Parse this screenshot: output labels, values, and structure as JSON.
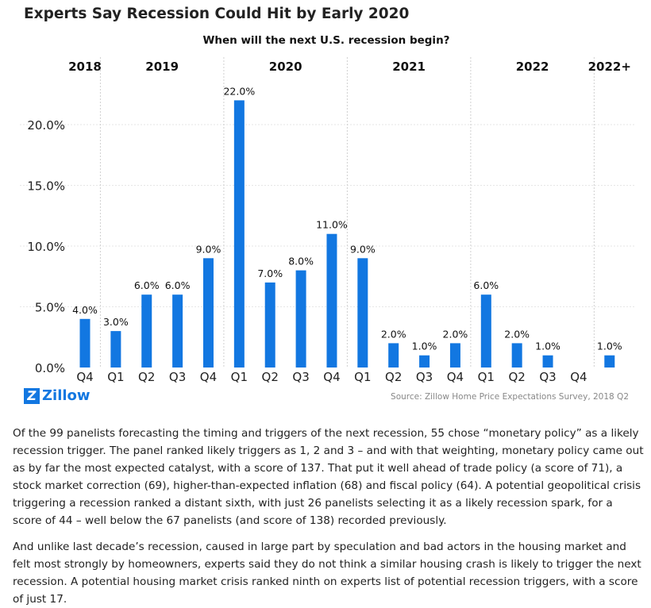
{
  "title": "Experts Say Recession Could Hit by Early 2020",
  "chart_data": {
    "type": "bar",
    "subtitle": "When will the next U.S. recession begin?",
    "year_groups": [
      "2018",
      "2019",
      "2020",
      "2021",
      "2022",
      "2022+"
    ],
    "categories": [
      "Q4",
      "Q1",
      "Q2",
      "Q3",
      "Q4",
      "Q1",
      "Q2",
      "Q3",
      "Q4",
      "Q1",
      "Q2",
      "Q3",
      "Q4",
      "Q1",
      "Q2",
      "Q3",
      "Q4",
      ""
    ],
    "category_years": [
      "2018",
      "2019",
      "2019",
      "2019",
      "2019",
      "2020",
      "2020",
      "2020",
      "2020",
      "2021",
      "2021",
      "2021",
      "2021",
      "2022",
      "2022",
      "2022",
      "2022",
      "2022+"
    ],
    "values": [
      4.0,
      3.0,
      6.0,
      6.0,
      9.0,
      22.0,
      7.0,
      8.0,
      11.0,
      9.0,
      2.0,
      1.0,
      2.0,
      6.0,
      2.0,
      1.0,
      null,
      1.0
    ],
    "value_labels": [
      "4.0%",
      "3.0%",
      "6.0%",
      "6.0%",
      "9.0%",
      "22.0%",
      "7.0%",
      "8.0%",
      "11.0%",
      "9.0%",
      "2.0%",
      "1.0%",
      "2.0%",
      "6.0%",
      "2.0%",
      "1.0%",
      "",
      "1.0%"
    ],
    "y_ticks": [
      0,
      5,
      10,
      15,
      20
    ],
    "y_tick_labels": [
      "0.0%",
      "5.0%",
      "10.0%",
      "15.0%",
      "20.0%"
    ],
    "ylim": [
      0,
      23
    ],
    "grid": true,
    "bar_color": "#1277e1"
  },
  "footer": {
    "logo_text": "Zillow",
    "source": "Source: Zillow Home Price Expectations Survey, 2018 Q2"
  },
  "paragraphs": [
    "Of the 99 panelists forecasting the timing and triggers of the next recession, 55 chose “monetary policy” as a likely recession trigger. The panel ranked likely triggers as 1, 2 and 3 – and with that weighting, monetary policy came out as by far the most expected catalyst, with a score of 137. That put it well ahead of trade policy (a score of 71), a stock market correction (69), higher-than-expected inflation (68) and fiscal policy (64). A potential geopolitical crisis triggering a recession ranked a distant sixth, with just 26 panelists selecting it as a likely recession spark, for a score of 44 – well below the 67 panelists (and score of 138) recorded previously.",
    "And unlike last decade’s recession, caused in large part by speculation and bad actors in the housing market and felt most strongly by homeowners, experts said they do not think a similar housing crash is likely to trigger the next recession. A potential housing market crisis ranked ninth on experts list of potential recession triggers, with a score of just 17."
  ]
}
